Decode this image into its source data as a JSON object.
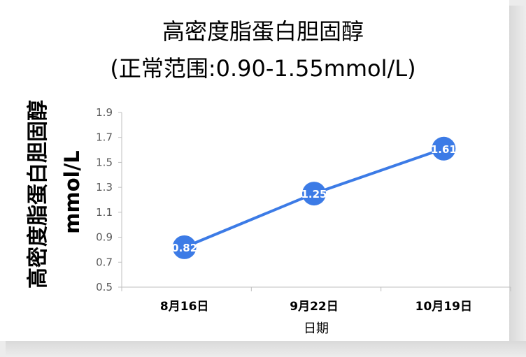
{
  "chart_data": {
    "type": "line",
    "title": "高密度脂蛋白胆固醇",
    "subtitle": "(正常范围:0.90-1.55mmol/L)",
    "ylabel_name": "高密度脂蛋白胆固醇",
    "ylabel_unit": "mmol/L",
    "xlabel": "日期",
    "categories": [
      "8月16日",
      "9月22日",
      "10月19日"
    ],
    "values": [
      0.82,
      1.25,
      1.61
    ],
    "data_labels": [
      "0.82",
      "1.25",
      "1.61"
    ],
    "ylim": [
      0.5,
      1.9
    ],
    "yticks": [
      "0.5",
      "0.7",
      "0.9",
      "1.1",
      "1.3",
      "1.5",
      "1.7",
      "1.9"
    ],
    "grid": false,
    "legend": "none",
    "line_color": "#3c7be6",
    "marker_color": "#3c7be6"
  }
}
